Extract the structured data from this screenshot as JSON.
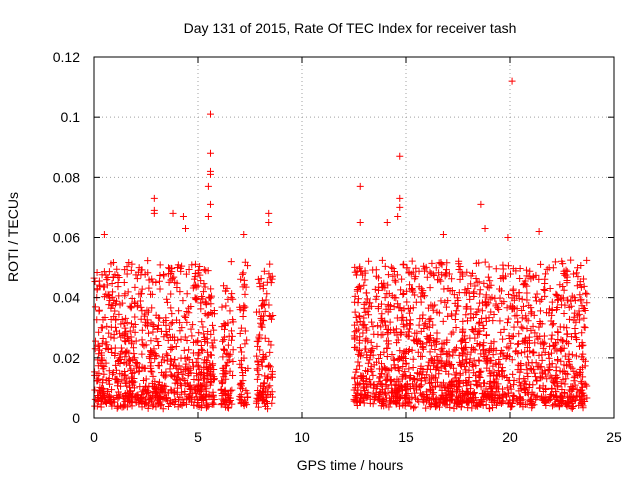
{
  "chart_data": {
    "type": "scatter",
    "title": "Day 131 of 2015, Rate Of TEC Index for receiver tash",
    "xlabel": "GPS time / hours",
    "ylabel": "ROTI / TECUs",
    "xlim": [
      0,
      25
    ],
    "ylim": [
      0,
      0.12
    ],
    "xticks": [
      "0",
      "5",
      "10",
      "15",
      "20",
      "25"
    ],
    "yticks": [
      "0",
      "0.02",
      "0.04",
      "0.06",
      "0.08",
      "0.1",
      "0.12"
    ],
    "grid": true,
    "marker": "+",
    "color": "#ff0000",
    "segments": [
      {
        "x_start": 0.0,
        "x_end": 5.8
      },
      {
        "x_start": 6.1,
        "x_end": 6.7
      },
      {
        "x_start": 7.0,
        "x_end": 7.4
      },
      {
        "x_start": 7.8,
        "x_end": 8.6
      },
      {
        "x_start": 12.5,
        "x_end": 23.7
      }
    ],
    "notable_points": [
      {
        "x": 5.6,
        "y": 0.101
      },
      {
        "x": 5.6,
        "y": 0.088
      },
      {
        "x": 5.6,
        "y": 0.082
      },
      {
        "x": 5.6,
        "y": 0.081
      },
      {
        "x": 5.5,
        "y": 0.077
      },
      {
        "x": 5.6,
        "y": 0.071
      },
      {
        "x": 5.5,
        "y": 0.067
      },
      {
        "x": 2.9,
        "y": 0.073
      },
      {
        "x": 2.9,
        "y": 0.069
      },
      {
        "x": 2.9,
        "y": 0.068
      },
      {
        "x": 3.8,
        "y": 0.068
      },
      {
        "x": 4.3,
        "y": 0.067
      },
      {
        "x": 4.4,
        "y": 0.063
      },
      {
        "x": 0.5,
        "y": 0.061
      },
      {
        "x": 7.2,
        "y": 0.061
      },
      {
        "x": 8.4,
        "y": 0.068
      },
      {
        "x": 8.4,
        "y": 0.065
      },
      {
        "x": 12.8,
        "y": 0.077
      },
      {
        "x": 12.8,
        "y": 0.065
      },
      {
        "x": 14.7,
        "y": 0.087
      },
      {
        "x": 14.7,
        "y": 0.073
      },
      {
        "x": 14.7,
        "y": 0.07
      },
      {
        "x": 14.6,
        "y": 0.067
      },
      {
        "x": 14.1,
        "y": 0.065
      },
      {
        "x": 16.8,
        "y": 0.061
      },
      {
        "x": 18.6,
        "y": 0.071
      },
      {
        "x": 18.8,
        "y": 0.063
      },
      {
        "x": 19.9,
        "y": 0.06
      },
      {
        "x": 20.1,
        "y": 0.112
      },
      {
        "x": 21.4,
        "y": 0.062
      }
    ],
    "typical_range": {
      "y_min": 0.003,
      "y_max": 0.05
    }
  }
}
